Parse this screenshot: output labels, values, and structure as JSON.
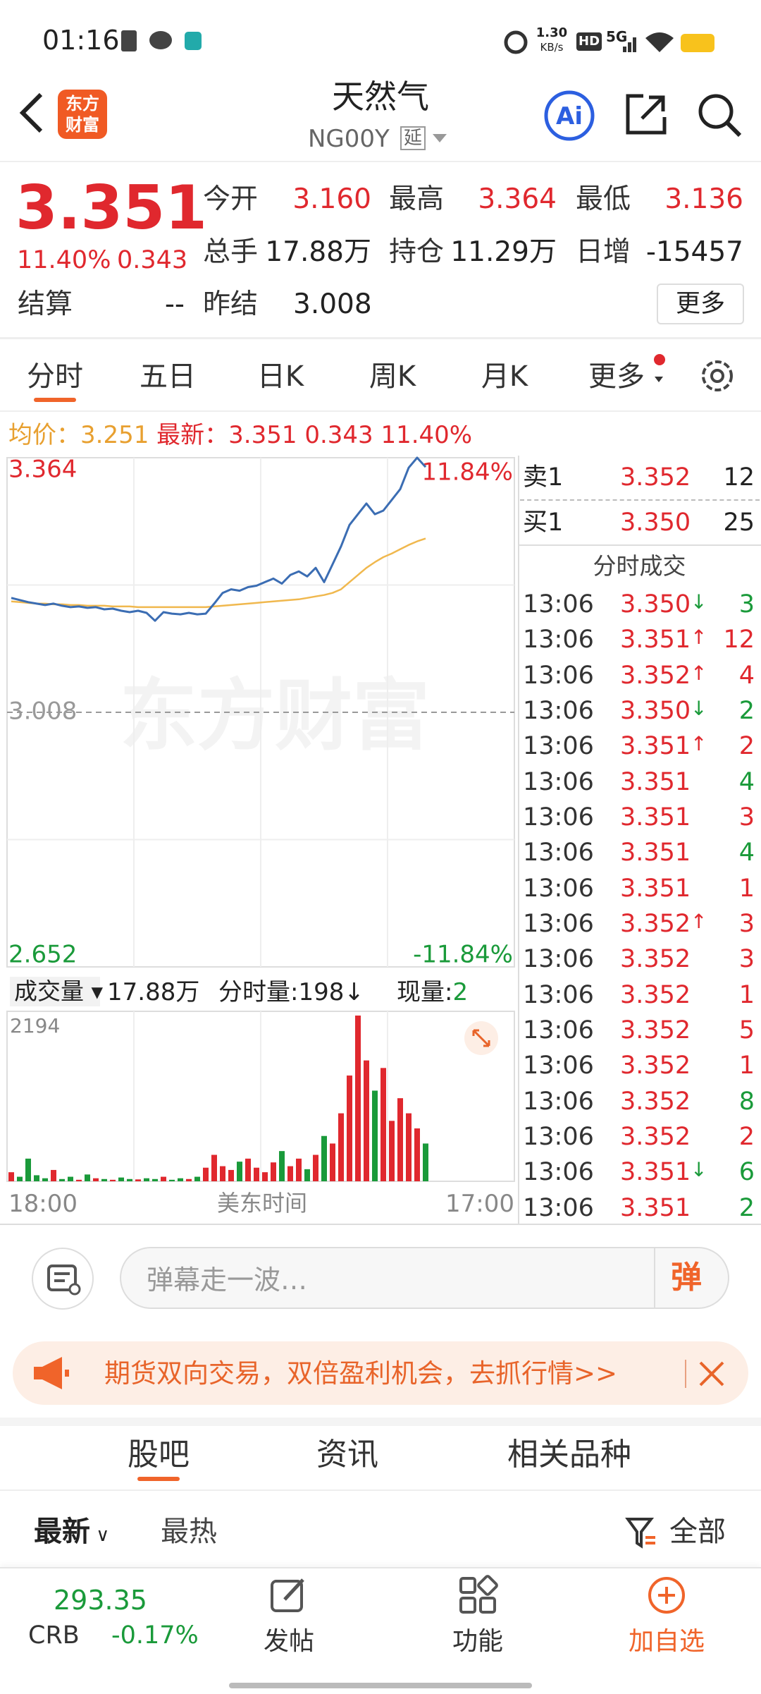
{
  "status": {
    "time": "01:16",
    "speed": "1.30",
    "speed_unit": "KB/s",
    "hd": "HD",
    "net": "5G"
  },
  "header": {
    "logo": [
      "东方",
      "财富"
    ],
    "title": "天然气",
    "code": "NG00Y",
    "tag": "延"
  },
  "quote": {
    "price": "3.351",
    "change_pct": "11.40%",
    "change": "0.343",
    "settle_label": "结算",
    "settle": "--",
    "stats": [
      [
        "今开",
        "3.160"
      ],
      [
        "最高",
        "3.364"
      ],
      [
        "最低",
        "3.136"
      ],
      [
        "总手",
        "17.88万"
      ],
      [
        "持仓",
        "11.29万"
      ],
      [
        "日增",
        "-15457"
      ],
      [
        "昨结",
        "3.008"
      ]
    ],
    "more": "更多"
  },
  "tabs": [
    "分时",
    "五日",
    "日K",
    "周K",
    "月K",
    "更多"
  ],
  "info": {
    "avg_label": "均价：",
    "avg": "3.251",
    "latest_label": "最新：",
    "latest": "3.351",
    "change": "0.343",
    "change_pct": "11.40%"
  },
  "chart": {
    "watermark": "东方财富",
    "ylim": [
      2.652,
      3.364
    ],
    "yticks": [
      2.652,
      3.008,
      3.364
    ],
    "pct_top": "11.84%",
    "pct_bottom": "-11.84%",
    "line_color": "#3b6db3",
    "avg_color": "#f0b84e",
    "price": [
      3.168,
      3.165,
      3.162,
      3.16,
      3.158,
      3.16,
      3.157,
      3.155,
      3.156,
      3.154,
      3.155,
      3.152,
      3.153,
      3.15,
      3.148,
      3.15,
      3.147,
      3.136,
      3.148,
      3.146,
      3.145,
      3.147,
      3.145,
      3.146,
      3.16,
      3.175,
      3.18,
      3.178,
      3.183,
      3.185,
      3.19,
      3.195,
      3.188,
      3.2,
      3.205,
      3.198,
      3.21,
      3.19,
      3.215,
      3.24,
      3.27,
      3.285,
      3.3,
      3.285,
      3.29,
      3.305,
      3.32,
      3.35,
      3.364,
      3.351,
      null,
      null,
      null,
      null,
      null,
      null,
      null,
      null,
      null,
      null
    ],
    "avg": [
      3.163,
      3.162,
      3.161,
      3.16,
      3.16,
      3.159,
      3.159,
      3.158,
      3.158,
      3.157,
      3.157,
      3.157,
      3.156,
      3.156,
      3.156,
      3.155,
      3.155,
      3.155,
      3.155,
      3.155,
      3.155,
      3.155,
      3.155,
      3.155,
      3.156,
      3.157,
      3.158,
      3.159,
      3.16,
      3.161,
      3.162,
      3.163,
      3.164,
      3.165,
      3.166,
      3.168,
      3.17,
      3.172,
      3.175,
      3.18,
      3.19,
      3.2,
      3.21,
      3.218,
      3.225,
      3.23,
      3.236,
      3.242,
      3.247,
      3.251,
      null,
      null,
      null,
      null,
      null,
      null,
      null,
      null,
      null,
      null
    ]
  },
  "volume": {
    "label": "成交量",
    "total": "17.88万",
    "tick_label": "分时量:",
    "tick": "198",
    "tick_arrow": "↓",
    "now_label": "现量:",
    "now": "2",
    "max": 2194,
    "up_color": "#e0282e",
    "down_color": "#1a9a3a",
    "values": [
      120,
      60,
      300,
      80,
      40,
      150,
      30,
      60,
      20,
      90,
      40,
      30,
      20,
      50,
      30,
      25,
      40,
      30,
      60,
      20,
      40,
      30,
      60,
      180,
      350,
      200,
      150,
      260,
      300,
      180,
      120,
      250,
      400,
      200,
      300,
      160,
      350,
      600,
      500,
      900,
      1400,
      2194,
      1600,
      1200,
      1500,
      800,
      1100,
      900,
      700,
      500,
      null,
      null,
      null,
      null,
      null,
      null,
      null,
      null,
      null,
      null
    ],
    "x_start": "18:00",
    "x_mid": "美东时间",
    "x_end": "17:00"
  },
  "book": {
    "sell": [
      "卖1",
      "3.352",
      "12"
    ],
    "buy": [
      "买1",
      "3.350",
      "25"
    ],
    "trades_title": "分时成交",
    "trades": [
      {
        "time": "13:06",
        "price": "3.350",
        "arrow": "↓",
        "vol": "3",
        "color": "#1a9a3a"
      },
      {
        "time": "13:06",
        "price": "3.351",
        "arrow": "↑",
        "vol": "12",
        "color": "#e0282e"
      },
      {
        "time": "13:06",
        "price": "3.352",
        "arrow": "↑",
        "vol": "4",
        "color": "#e0282e"
      },
      {
        "time": "13:06",
        "price": "3.350",
        "arrow": "↓",
        "vol": "2",
        "color": "#1a9a3a"
      },
      {
        "time": "13:06",
        "price": "3.351",
        "arrow": "↑",
        "vol": "2",
        "color": "#e0282e"
      },
      {
        "time": "13:06",
        "price": "3.351",
        "vol": "4",
        "color": "#1a9a3a"
      },
      {
        "time": "13:06",
        "price": "3.351",
        "vol": "3",
        "color": "#e0282e"
      },
      {
        "time": "13:06",
        "price": "3.351",
        "vol": "4",
        "color": "#1a9a3a"
      },
      {
        "time": "13:06",
        "price": "3.351",
        "vol": "1",
        "color": "#e0282e"
      },
      {
        "time": "13:06",
        "price": "3.352",
        "arrow": "↑",
        "vol": "3",
        "color": "#e0282e"
      },
      {
        "time": "13:06",
        "price": "3.352",
        "vol": "3",
        "color": "#e0282e"
      },
      {
        "time": "13:06",
        "price": "3.352",
        "vol": "1",
        "color": "#e0282e"
      },
      {
        "time": "13:06",
        "price": "3.352",
        "vol": "5",
        "color": "#e0282e"
      },
      {
        "time": "13:06",
        "price": "3.352",
        "vol": "1",
        "color": "#e0282e"
      },
      {
        "time": "13:06",
        "price": "3.352",
        "vol": "8",
        "color": "#1a9a3a"
      },
      {
        "time": "13:06",
        "price": "3.352",
        "vol": "2",
        "color": "#e0282e"
      },
      {
        "time": "13:06",
        "price": "3.351",
        "arrow": "↓",
        "vol": "6",
        "color": "#1a9a3a"
      },
      {
        "time": "13:06",
        "price": "3.351",
        "vol": "2",
        "color": "#1a9a3a"
      }
    ]
  },
  "comment": {
    "placeholder": "弹幕走一波…",
    "button": "弹"
  },
  "banner": {
    "text": "期货双向交易，双倍盈利机会，去抓行情>>"
  },
  "sections": [
    "股吧",
    "资讯",
    "相关品种"
  ],
  "filters": {
    "latest": "最新",
    "hot": "最热",
    "all": "全部"
  },
  "nav": {
    "index_value": "293.35",
    "index_name": "CRB",
    "index_change": "-0.17%",
    "items": [
      "发帖",
      "功能",
      "加自选"
    ]
  }
}
